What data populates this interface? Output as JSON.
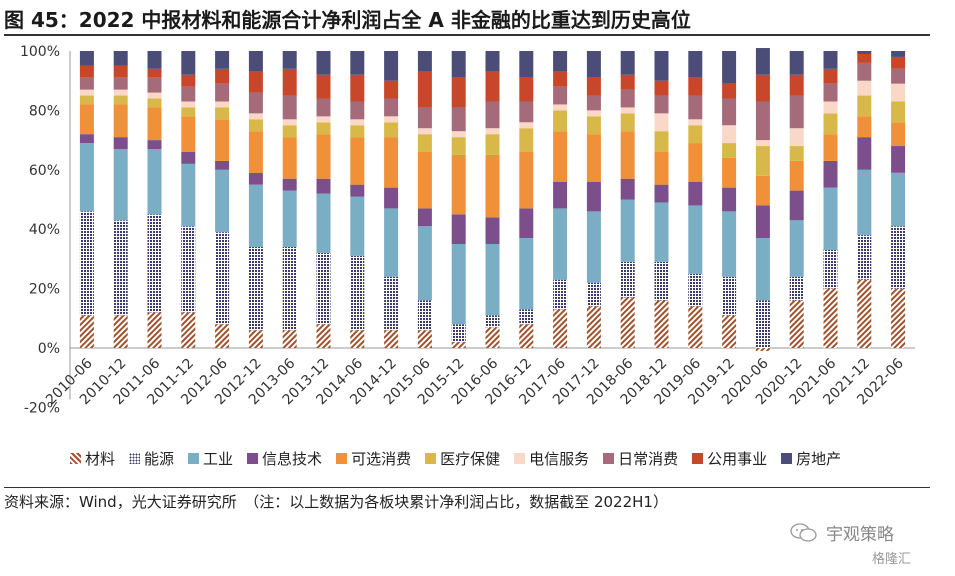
{
  "title": "图 45：2022 中报材料和能源合计净利润占全 A 非金融的比重达到历史高位",
  "source": "资料来源：Wind，光大证券研究所　（注：以上数据为各板块累计净利润占比，数据截至 2022H1）",
  "watermark": "宇观策略",
  "watermark_small": "格隆汇",
  "chart_data": {
    "type": "bar",
    "stacked": true,
    "ylim": [
      -20,
      100
    ],
    "yticks": [
      "-20%",
      "0%",
      "20%",
      "40%",
      "60%",
      "80%",
      "100%"
    ],
    "categories": [
      "2010-06",
      "2010-12",
      "2011-06",
      "2011-12",
      "2012-06",
      "2012-12",
      "2013-06",
      "2013-12",
      "2014-06",
      "2014-12",
      "2015-06",
      "2015-12",
      "2016-06",
      "2016-12",
      "2017-06",
      "2017-12",
      "2018-06",
      "2018-12",
      "2019-06",
      "2019-12",
      "2020-06",
      "2020-12",
      "2021-06",
      "2021-12",
      "2022-06"
    ],
    "series": [
      {
        "name": "材料",
        "color": "#a0522d",
        "pattern": "hatch",
        "values": [
          11,
          11,
          12,
          12,
          8,
          6,
          6,
          8,
          6,
          6,
          6,
          2,
          7,
          8,
          13,
          14,
          17,
          16,
          14,
          11,
          -1,
          16,
          20,
          23,
          20
        ]
      },
      {
        "name": "能源",
        "color": "#3b3a6b",
        "pattern": "dots",
        "values": [
          35,
          32,
          33,
          29,
          31,
          28,
          28,
          24,
          25,
          18,
          10,
          6,
          4,
          5,
          10,
          8,
          12,
          13,
          11,
          13,
          16,
          8,
          13,
          15,
          21
        ]
      },
      {
        "name": "工业",
        "color": "#7aaec4",
        "values": [
          23,
          24,
          22,
          21,
          21,
          21,
          19,
          20,
          20,
          23,
          25,
          27,
          24,
          24,
          24,
          24,
          21,
          20,
          23,
          22,
          21,
          19,
          21,
          22,
          18
        ]
      },
      {
        "name": "信息技术",
        "color": "#7c4f8c",
        "values": [
          3,
          4,
          3,
          4,
          3,
          4,
          4,
          5,
          4,
          7,
          6,
          10,
          9,
          10,
          9,
          10,
          7,
          6,
          8,
          8,
          11,
          10,
          9,
          11,
          9
        ]
      },
      {
        "name": "可选消费",
        "color": "#f0913a",
        "values": [
          10,
          11,
          11,
          12,
          14,
          14,
          14,
          15,
          16,
          17,
          19,
          20,
          21,
          19,
          17,
          16,
          16,
          11,
          13,
          10,
          10,
          10,
          9,
          7,
          8
        ]
      },
      {
        "name": "医疗保健",
        "color": "#d9b84a",
        "values": [
          3,
          3,
          3,
          3,
          4,
          4,
          4,
          4,
          4,
          5,
          6,
          6,
          7,
          8,
          7,
          6,
          6,
          7,
          6,
          5,
          10,
          5,
          7,
          7,
          7
        ]
      },
      {
        "name": "电信服务",
        "color": "#fad8c8",
        "values": [
          2,
          2,
          2,
          2,
          2,
          2,
          2,
          2,
          2,
          2,
          2,
          2,
          2,
          2,
          2,
          2,
          2,
          6,
          2,
          6,
          2,
          6,
          4,
          5,
          6
        ]
      },
      {
        "name": "日常消费",
        "color": "#a56b7b",
        "values": [
          4,
          4,
          5,
          5,
          6,
          7,
          8,
          6,
          6,
          6,
          7,
          8,
          9,
          7,
          6,
          5,
          6,
          6,
          8,
          9,
          13,
          11,
          6,
          6,
          5
        ]
      },
      {
        "name": "公用事业",
        "color": "#c8472a",
        "values": [
          4,
          4,
          3,
          4,
          5,
          7,
          9,
          8,
          9,
          6,
          12,
          10,
          10,
          8,
          5,
          6,
          5,
          5,
          6,
          5,
          9,
          7,
          5,
          3,
          4
        ]
      },
      {
        "name": "房地产",
        "color": "#4b4d78",
        "values": [
          5,
          5,
          6,
          8,
          6,
          7,
          6,
          8,
          8,
          10,
          7,
          9,
          7,
          9,
          7,
          9,
          8,
          10,
          9,
          11,
          9,
          8,
          6,
          1,
          2
        ]
      }
    ]
  }
}
